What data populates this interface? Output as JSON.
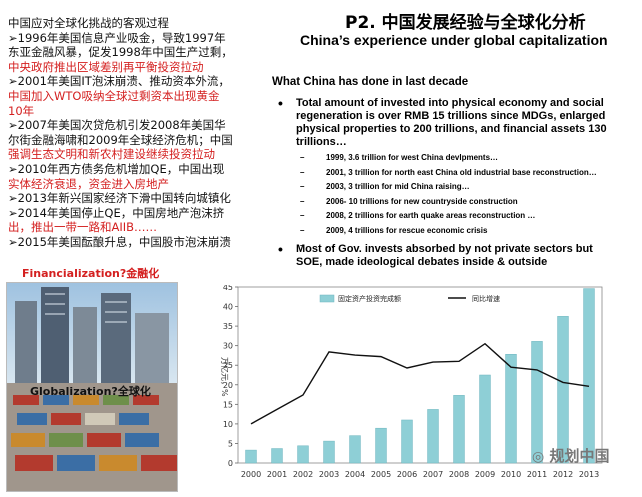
{
  "left_text": {
    "heading": "中国应对全球化挑战的客观过程",
    "lines": [
      {
        "text": "➢1996年美国信息产业吸金，导致1997年",
        "red": false
      },
      {
        "text": "东亚金融风暴，促发1998年中国生产过剩，",
        "red": false
      },
      {
        "text": "中央政府推出区域差别再平衡投资拉动",
        "red": true
      },
      {
        "text": "➢2001年美国IT泡沫崩溃、推动资本外流，",
        "red": false
      },
      {
        "text": "中国加入WTO吸纳全球过剩资本出现黄金",
        "red": true
      },
      {
        "text": "10年",
        "red": true
      },
      {
        "text": "➢2007年美国次贷危机引发2008年美国华",
        "red": false
      },
      {
        "text": "尔街金融海啸和2009年全球经济危机；中国",
        "red": false,
        "red_tail": true
      },
      {
        "text": "强调生态文明和新农村建设继续投资拉动",
        "red": true
      },
      {
        "text": "➢2010年西方债务危机增加QE，中国出现",
        "red": false
      },
      {
        "text": "实体经济衰退，资金进入房地产",
        "red": true
      },
      {
        "text": "➢2013年新兴国家经济下滑中国转向城镇化",
        "red": false
      },
      {
        "text": "➢2014年美国停止QE，中国房地产泡沫挤",
        "red": false
      },
      {
        "text": "出，推出一带一路和AIIB……",
        "red": true
      },
      {
        "text": "➢2015年美国酝酿升息，中国股市泡沫崩溃",
        "red": false
      }
    ]
  },
  "labels": {
    "financialization": "Financialization?金融化",
    "globalization": "Globalization?全球化"
  },
  "title_cn": "P2. 中国发展经验与全球化分析",
  "title_en": "China’s experience under global capitalization",
  "section_title": "What China has done in last decade",
  "bullet1": "Total amount of invested into physical economy and social regeneration is over RMB 15 trillions since MDGs, enlarged physical properties to 200 trillions, and financial assets 130 trillions…",
  "sub_items": [
    "1999, 3.6 trillion for west China devlpments…",
    "2001, 3 trillion for north east China old industrial base reconstruction…",
    "2003, 3 trillion for mid China raising…",
    "2006- 10 trillions for new countryside construction",
    "2008, 2 trillions for earth quake areas reconstruction …",
    "2009, 4 trillions for rescue economic crisis",
    "…"
  ],
  "bullet2": "Most of Gov. invests absorbed by not private sectors but SOE, made ideological debates inside & outside",
  "watermark": "规划中国",
  "chart_data": {
    "type": "bar",
    "categories": [
      "2000",
      "2001",
      "2002",
      "2003",
      "2004",
      "2005",
      "2006",
      "2007",
      "2008",
      "2009",
      "2010",
      "2011",
      "2012",
      "2013"
    ],
    "series": [
      {
        "name": "固定资产投资完成额",
        "kind": "bar",
        "color": "#8ecfd6",
        "values": [
          3.3,
          3.7,
          4.4,
          5.6,
          7.0,
          8.9,
          11.0,
          13.7,
          17.3,
          22.5,
          27.8,
          31.1,
          37.5,
          44.6
        ]
      },
      {
        "name": "同比增速",
        "kind": "line",
        "color": "#111111",
        "values": [
          10.0,
          13.7,
          17.4,
          28.4,
          27.6,
          27.2,
          24.3,
          25.8,
          26.0,
          30.5,
          24.5,
          23.8,
          20.6,
          19.6
        ]
      }
    ],
    "ylim": [
      0,
      45
    ],
    "yticks": [
      0,
      5,
      10,
      15,
      20,
      25,
      30,
      35,
      40,
      45
    ],
    "ylabel": "万亿元，%",
    "grid": false,
    "legend": "top"
  }
}
